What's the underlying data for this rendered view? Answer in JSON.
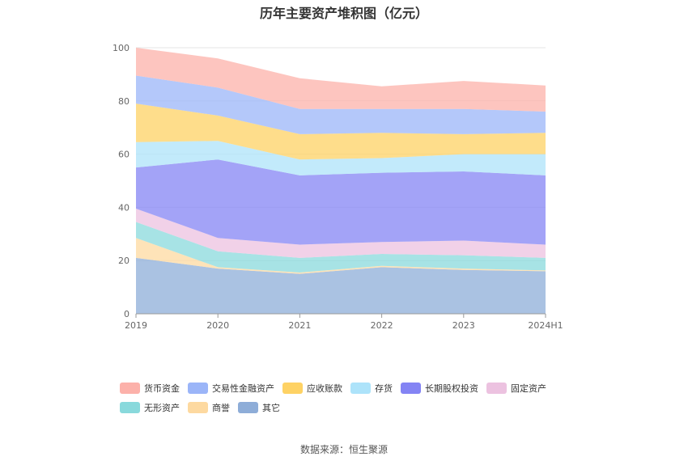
{
  "chart_data": {
    "type": "area",
    "stacked": true,
    "title": "历年主要资产堆积图（亿元）",
    "x": [
      "2019",
      "2020",
      "2021",
      "2022",
      "2023",
      "2024H1"
    ],
    "ylim": [
      0,
      100
    ],
    "yticks": [
      0,
      20,
      40,
      60,
      80,
      100
    ],
    "grid": true,
    "legend_position": "bottom",
    "series": [
      {
        "name": "其它",
        "color": "#8eadd8",
        "values": [
          21,
          17,
          15,
          17.5,
          16.5,
          16
        ]
      },
      {
        "name": "商誉",
        "color": "#fdd9a0",
        "values": [
          7.5,
          0.5,
          0.5,
          0.5,
          0.5,
          0.3
        ]
      },
      {
        "name": "无形资产",
        "color": "#89d9dc",
        "values": [
          6,
          6,
          5.5,
          4.5,
          5,
          4.7
        ]
      },
      {
        "name": "固定资产",
        "color": "#ecc2e0",
        "values": [
          5,
          5,
          5,
          4.5,
          5.5,
          5
        ]
      },
      {
        "name": "长期股权投资",
        "color": "#8484f4",
        "values": [
          15.5,
          29.5,
          26,
          26,
          26,
          26
        ]
      },
      {
        "name": "存货",
        "color": "#ade3fa",
        "values": [
          9.5,
          7,
          6,
          5.5,
          6.5,
          8
        ]
      },
      {
        "name": "应收账款",
        "color": "#fed264",
        "values": [
          14.5,
          9.5,
          9.5,
          9.5,
          7.5,
          8
        ]
      },
      {
        "name": "交易性金融资产",
        "color": "#9bb5f8",
        "values": [
          10.5,
          10.5,
          9.5,
          9,
          9.5,
          8
        ]
      },
      {
        "name": "货币资金",
        "color": "#fcb1aa",
        "values": [
          10.5,
          11,
          11.5,
          8.5,
          10.5,
          9.8
        ]
      }
    ],
    "legend_order": [
      "货币资金",
      "交易性金融资产",
      "应收账款",
      "存货",
      "长期股权投资",
      "固定资产",
      "无形资产",
      "商誉",
      "其它"
    ]
  },
  "source": "数据来源：恒生聚源"
}
